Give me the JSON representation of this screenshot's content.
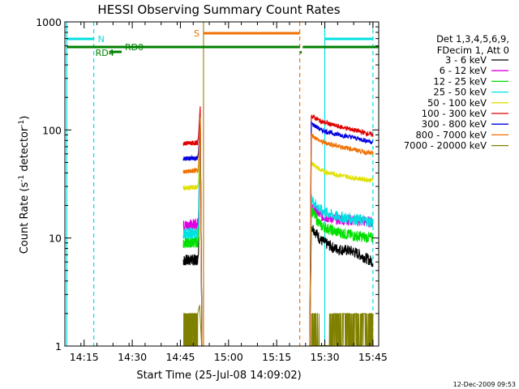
{
  "chart_data": {
    "type": "line",
    "title": "HESSI Observing Summary Count Rates",
    "xlabel": "Start Time (25-Jul-08 14:09:02)",
    "ylabel_main": "Count Rate (s",
    "ylabel_sup1": "-1",
    "ylabel_mid": " detector",
    "ylabel_sup2": "-1",
    "ylabel_end": ")",
    "yscale": "log",
    "ylim": [
      1,
      1000
    ],
    "xlim_minutes": [
      14.15,
      15.78
    ],
    "x_ticks": [
      {
        "label": "14:15",
        "t": 14.25
      },
      {
        "label": "14:30",
        "t": 14.5
      },
      {
        "label": "14:45",
        "t": 14.75
      },
      {
        "label": "15:00",
        "t": 15.0
      },
      {
        "label": "15:15",
        "t": 15.25
      },
      {
        "label": "15:30",
        "t": 15.5
      },
      {
        "label": "15:45",
        "t": 15.75
      }
    ],
    "y_ticks": [
      {
        "label": "1",
        "v": 1
      },
      {
        "label": "10",
        "v": 10
      },
      {
        "label": "100",
        "v": 100
      },
      {
        "label": "1000",
        "v": 1000
      }
    ],
    "legend": {
      "header1": "Det 1,3,4,5,6,9,",
      "header2": "FDecim 1, Att 0",
      "placement": "right"
    },
    "series": [
      {
        "name": "3 - 6 keV",
        "color": "#000000",
        "seg1": [
          [
            14.765,
            6.2
          ],
          [
            14.84,
            6.3
          ]
        ],
        "seg2": [
          [
            15.43,
            13
          ],
          [
            15.48,
            9.5
          ],
          [
            15.55,
            8
          ],
          [
            15.65,
            7.5
          ],
          [
            15.75,
            6
          ]
        ]
      },
      {
        "name": "6 - 12 keV",
        "color": "#e000e0",
        "seg1": [
          [
            14.765,
            13
          ],
          [
            14.84,
            13.5
          ]
        ],
        "seg2": [
          [
            15.43,
            20
          ],
          [
            15.48,
            16
          ],
          [
            15.55,
            15
          ],
          [
            15.65,
            14.5
          ],
          [
            15.75,
            14
          ]
        ]
      },
      {
        "name": "12 - 25 keV",
        "color": "#00e000",
        "seg1": [
          [
            14.765,
            9
          ],
          [
            14.84,
            9.2
          ]
        ],
        "seg2": [
          [
            15.43,
            18
          ],
          [
            15.48,
            13
          ],
          [
            15.55,
            11.5
          ],
          [
            15.65,
            10.5
          ],
          [
            15.75,
            10
          ]
        ]
      },
      {
        "name": "25 - 50 keV",
        "color": "#00e0e0",
        "seg1": [
          [
            14.765,
            11
          ],
          [
            14.84,
            11.2
          ]
        ],
        "seg2": [
          [
            15.43,
            23
          ],
          [
            15.48,
            18
          ],
          [
            15.55,
            16
          ],
          [
            15.65,
            15
          ],
          [
            15.75,
            14
          ]
        ]
      },
      {
        "name": "50 - 100 keV",
        "color": "#e0e000",
        "seg1": [
          [
            14.765,
            29
          ],
          [
            14.84,
            29.5
          ]
        ],
        "seg2": [
          [
            15.43,
            50
          ],
          [
            15.48,
            42
          ],
          [
            15.55,
            39
          ],
          [
            15.65,
            36
          ],
          [
            15.75,
            34
          ]
        ]
      },
      {
        "name": "100 - 300 keV",
        "color": "#e00000",
        "seg1": [
          [
            14.765,
            75
          ],
          [
            14.84,
            76
          ]
        ],
        "seg2": [
          [
            15.43,
            135
          ],
          [
            15.48,
            120
          ],
          [
            15.55,
            110
          ],
          [
            15.65,
            100
          ],
          [
            15.75,
            90
          ]
        ]
      },
      {
        "name": "300 - 800 keV",
        "color": "#0000e0",
        "seg1": [
          [
            14.765,
            54
          ],
          [
            14.84,
            55
          ]
        ],
        "seg2": [
          [
            15.43,
            115
          ],
          [
            15.48,
            100
          ],
          [
            15.55,
            92
          ],
          [
            15.65,
            85
          ],
          [
            15.75,
            77
          ]
        ]
      },
      {
        "name": "800 - 7000 keV",
        "color": "#f07000",
        "seg1": [
          [
            14.765,
            41
          ],
          [
            14.84,
            42
          ]
        ],
        "seg2": [
          [
            15.43,
            90
          ],
          [
            15.48,
            78
          ],
          [
            15.55,
            72
          ],
          [
            15.65,
            66
          ],
          [
            15.75,
            60
          ]
        ]
      },
      {
        "name": "7000 - 20000 keV",
        "color": "#808000",
        "seg1": [
          [
            14.765,
            1.5
          ],
          [
            14.84,
            1.5
          ]
        ],
        "seg2": [
          [
            15.43,
            2.5
          ],
          [
            15.48,
            1.6
          ],
          [
            15.55,
            1.5
          ],
          [
            15.65,
            1.5
          ],
          [
            15.75,
            1.5
          ]
        ]
      }
    ],
    "annotations": {
      "N_label": "N",
      "S_label": "S",
      "RD0_label": "RD0",
      "RD4_label": "RD4",
      "night_intervals": [
        [
          14.16,
          14.3
        ],
        [
          15.5,
          15.75
        ]
      ],
      "saa_interval": [
        14.87,
        15.37
      ],
      "rd0_intervals": [
        [
          14.16,
          15.37
        ],
        [
          15.385,
          15.78
        ]
      ],
      "rd4_interval": [
        14.38,
        14.445
      ],
      "cyan_dashed_lines": [
        14.3,
        15.75
      ],
      "cyan_solid_lines": [
        14.16,
        15.5
      ],
      "orange_dashed_line": 15.37,
      "olive_line": 14.87,
      "flare_peak_time": 14.85,
      "flare_peak_value": 165
    },
    "colors": {
      "night": "#00e0e0",
      "saa": "#f07000",
      "rd": "#008000",
      "olive": "#808000"
    }
  },
  "footer": {
    "timestamp": "12-Dec-2009 09:53"
  }
}
